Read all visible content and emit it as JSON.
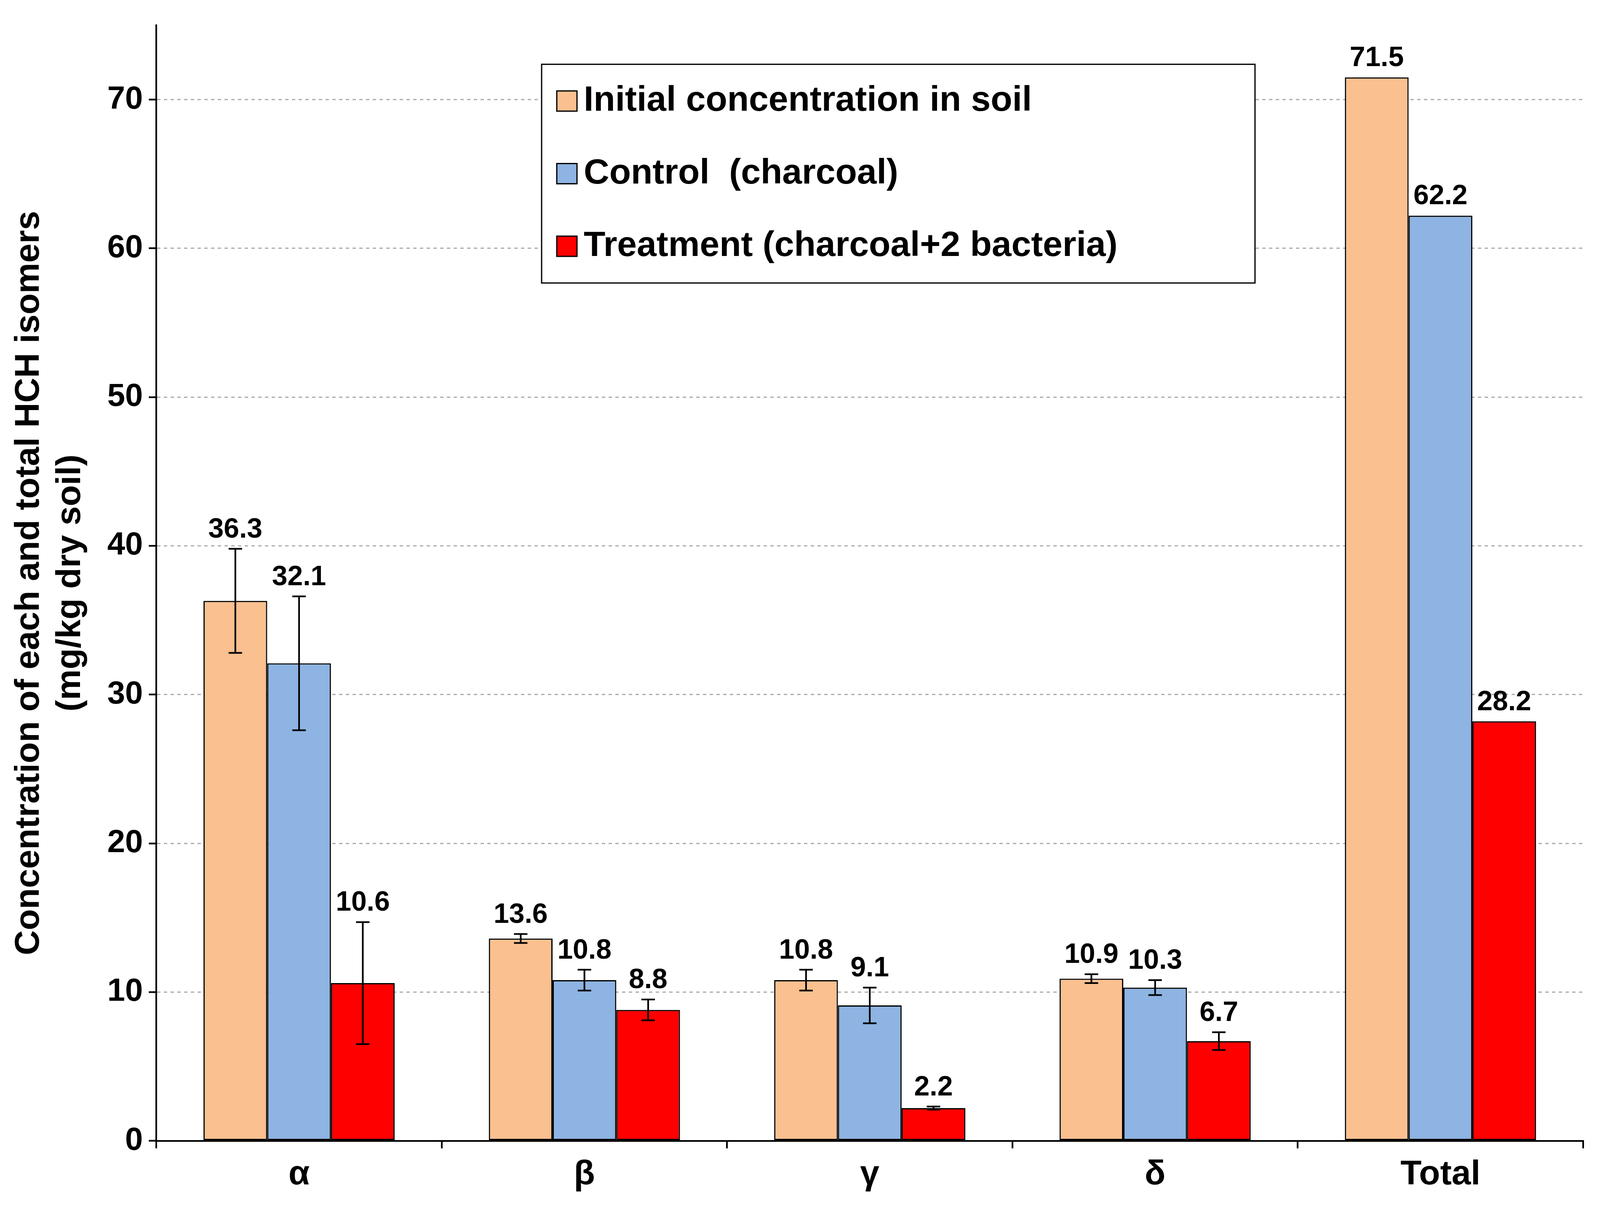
{
  "chart_data": {
    "type": "bar",
    "y_label": [
      "Concentration of each and total HCH isomers",
      "(mg/kg dry soil)"
    ],
    "categories": [
      "α",
      "β",
      "γ",
      "δ",
      "Total"
    ],
    "series": [
      {
        "name": "Initial concentration in soil",
        "color": "#FAC090",
        "values": [
          36.3,
          13.6,
          10.8,
          10.9,
          71.5
        ],
        "errors": [
          3.5,
          0.3,
          0.7,
          0.3,
          null
        ]
      },
      {
        "name": "Control  (charcoal)",
        "color": "#8DB4E2",
        "values": [
          32.1,
          10.8,
          9.1,
          10.3,
          62.2
        ],
        "errors": [
          4.5,
          0.7,
          1.2,
          0.5,
          null
        ]
      },
      {
        "name": "Treatment (charcoal+2 bacteria)",
        "color": "#FF0000",
        "values": [
          10.6,
          8.8,
          2.2,
          6.7,
          28.2
        ],
        "errors": [
          4.1,
          0.7,
          0.1,
          0.6,
          null
        ]
      }
    ],
    "ylim": [
      0,
      75
    ],
    "yticks": [
      0,
      10,
      20,
      30,
      40,
      50,
      60,
      70
    ],
    "grid": true,
    "legend": "top",
    "data_labels": true
  }
}
